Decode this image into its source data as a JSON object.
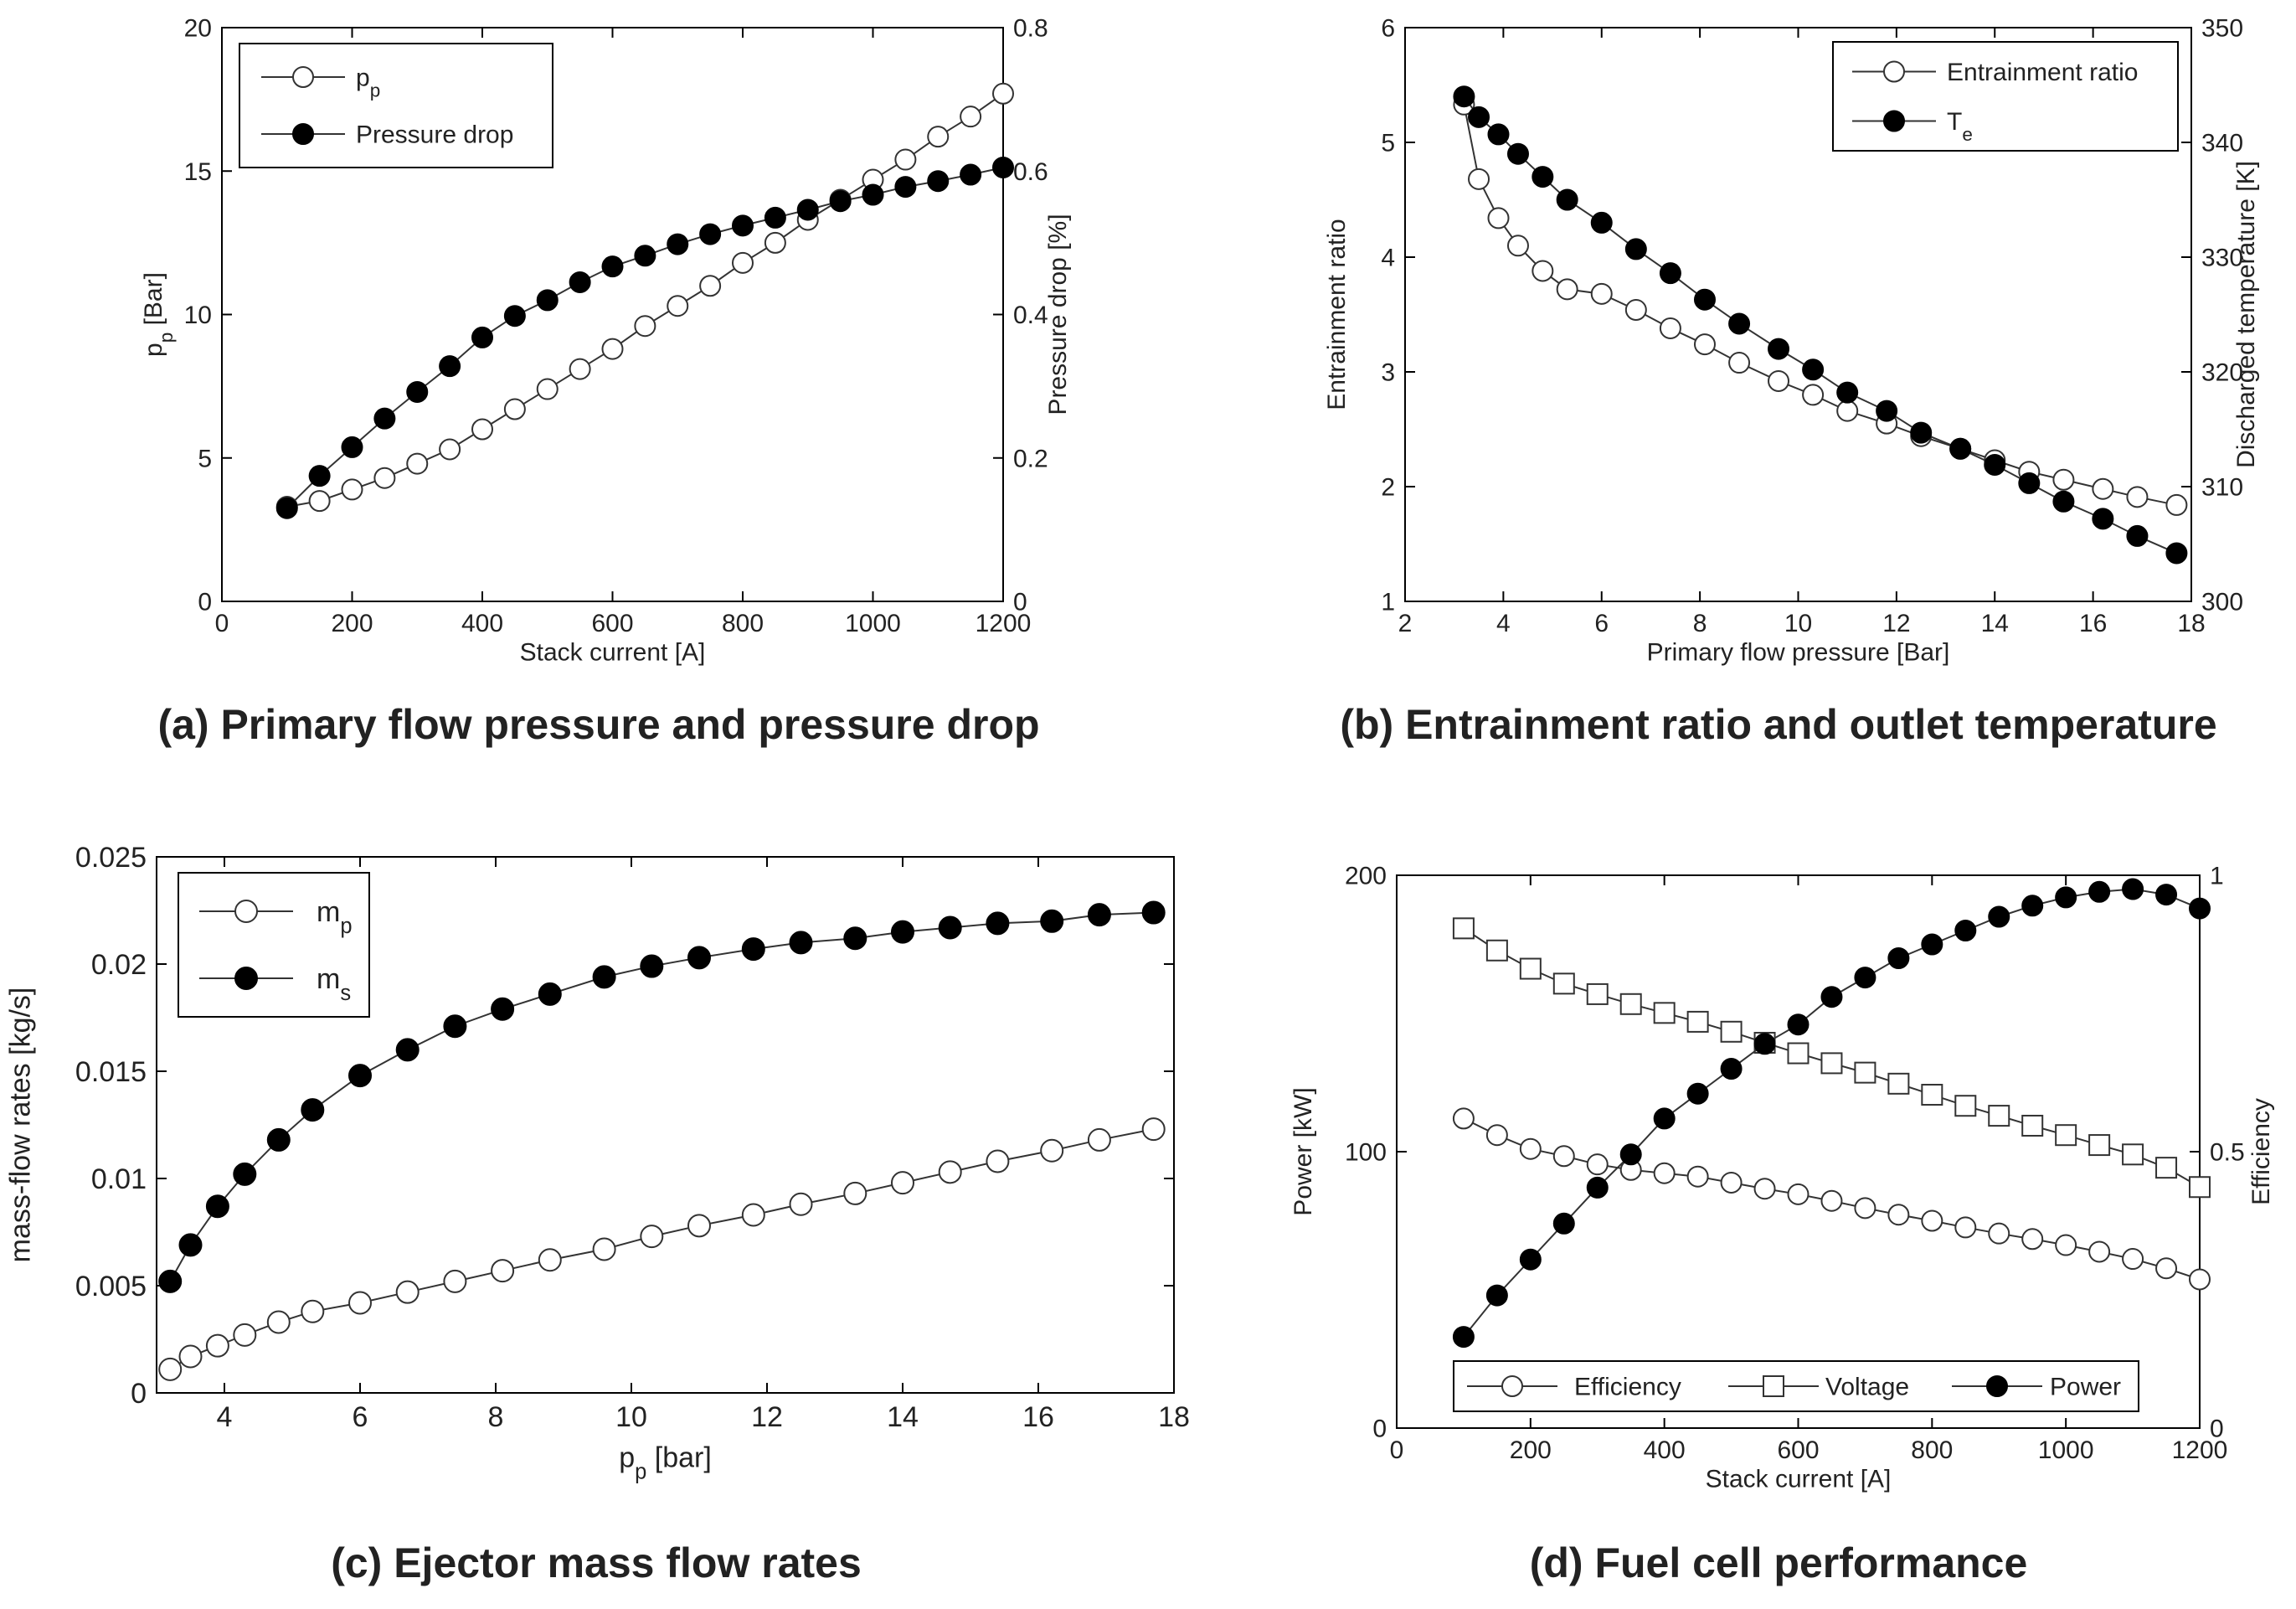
{
  "chart_data": [
    {
      "type": "line",
      "caption": "(a) Primary flow pressure and pressure drop",
      "xlabel": "Stack current [A]",
      "ylabel_left": "p",
      "ylabel_left_sub": "p",
      "ylabel_left_unit": " [Bar]",
      "ylabel_right": "Pressure drop [%]",
      "xlim": [
        0,
        1200
      ],
      "ylim_left": [
        0,
        20
      ],
      "ylim_right": [
        0,
        0.8
      ],
      "x_ticks": [
        "0",
        "200",
        "400",
        "600",
        "800",
        "1000",
        "1200"
      ],
      "y_left_ticks": [
        "0",
        "5",
        "10",
        "15",
        "20"
      ],
      "y_right_ticks": [
        "0",
        "0.2",
        "0.4",
        "0.6",
        "0.8"
      ],
      "legend": [
        {
          "label": "p",
          "sub": "p",
          "marker": "open-circle"
        },
        {
          "label": "Pressure drop",
          "sub": "",
          "marker": "filled-circle"
        }
      ],
      "series": [
        {
          "name": "pp",
          "axis": "left",
          "marker": "open-circle",
          "x": [
            100,
            150,
            200,
            250,
            300,
            350,
            400,
            450,
            500,
            550,
            600,
            650,
            700,
            750,
            800,
            850,
            900,
            950,
            1000,
            1050,
            1100,
            1150,
            1200
          ],
          "values": [
            3.3,
            3.5,
            3.9,
            4.3,
            4.8,
            5.3,
            6.0,
            6.7,
            7.4,
            8.1,
            8.8,
            9.6,
            10.3,
            11.0,
            11.8,
            12.5,
            13.3,
            14.0,
            14.7,
            15.4,
            16.2,
            16.9,
            17.7
          ]
        },
        {
          "name": "Pressure drop",
          "axis": "right",
          "marker": "filled-circle",
          "x": [
            100,
            150,
            200,
            250,
            300,
            350,
            400,
            450,
            500,
            550,
            600,
            650,
            700,
            750,
            800,
            850,
            900,
            950,
            1000,
            1050,
            1100,
            1150,
            1200
          ],
          "values": [
            0.13,
            0.175,
            0.215,
            0.255,
            0.292,
            0.328,
            0.368,
            0.398,
            0.42,
            0.445,
            0.467,
            0.482,
            0.498,
            0.512,
            0.524,
            0.535,
            0.546,
            0.558,
            0.567,
            0.578,
            0.586,
            0.595,
            0.605
          ]
        }
      ]
    },
    {
      "type": "line",
      "caption": "(b) Entrainment ratio and outlet temperature",
      "xlabel": "Primary flow pressure [Bar]",
      "ylabel_left": "Entrainment ratio",
      "ylabel_right": "Discharged temperature [K]",
      "xlim": [
        2,
        18
      ],
      "ylim_left": [
        1,
        6
      ],
      "ylim_right": [
        300,
        350
      ],
      "x_ticks": [
        "2",
        "4",
        "6",
        "8",
        "10",
        "12",
        "14",
        "16",
        "18"
      ],
      "y_left_ticks": [
        "1",
        "2",
        "3",
        "4",
        "5",
        "6"
      ],
      "y_right_ticks": [
        "300",
        "310",
        "320",
        "330",
        "340",
        "350"
      ],
      "legend": [
        {
          "label": "Entrainment ratio",
          "sub": "",
          "marker": "open-circle"
        },
        {
          "label": "T",
          "sub": "e",
          "marker": "filled-circle"
        }
      ],
      "series": [
        {
          "name": "Entrainment ratio",
          "axis": "left",
          "marker": "open-circle",
          "x": [
            3.2,
            3.5,
            3.9,
            4.3,
            4.8,
            5.3,
            6.0,
            6.7,
            7.4,
            8.1,
            8.8,
            9.6,
            10.3,
            11.0,
            11.8,
            12.5,
            13.3,
            14.0,
            14.7,
            15.4,
            16.2,
            16.9,
            17.7
          ],
          "values": [
            5.33,
            4.68,
            4.34,
            4.1,
            3.88,
            3.72,
            3.68,
            3.54,
            3.38,
            3.24,
            3.08,
            2.92,
            2.8,
            2.66,
            2.55,
            2.44,
            2.33,
            2.23,
            2.13,
            2.06,
            1.98,
            1.91,
            1.84
          ]
        },
        {
          "name": "Te",
          "axis": "right",
          "marker": "filled-circle",
          "x": [
            3.2,
            3.5,
            3.9,
            4.3,
            4.8,
            5.3,
            6.0,
            6.7,
            7.4,
            8.1,
            8.8,
            9.6,
            10.3,
            11.0,
            11.8,
            12.5,
            13.3,
            14.0,
            14.7,
            15.4,
            16.2,
            16.9,
            17.7
          ],
          "values": [
            344,
            342.2,
            340.7,
            339,
            337,
            335,
            333,
            330.7,
            328.6,
            326.3,
            324.2,
            322,
            320.2,
            318.2,
            316.6,
            314.7,
            313.3,
            311.9,
            310.3,
            308.7,
            307.2,
            305.7,
            304.2
          ]
        }
      ]
    },
    {
      "type": "line",
      "caption": "(c) Ejector mass flow rates",
      "xlabel": "p",
      "xlabel_sub": "p",
      "xlabel_unit": " [bar]",
      "ylabel_left": "mass-flow rates [kg/s]",
      "xlim": [
        3,
        18
      ],
      "ylim_left": [
        0,
        0.025
      ],
      "x_ticks": [
        "4",
        "6",
        "8",
        "10",
        "12",
        "14",
        "16",
        "18"
      ],
      "y_left_ticks": [
        "0",
        "0.005",
        "0.01",
        "0.015",
        "0.02",
        "0.025"
      ],
      "legend": [
        {
          "label": "m",
          "sub": "p",
          "marker": "open-circle"
        },
        {
          "label": "m",
          "sub": "s",
          "marker": "filled-circle"
        }
      ],
      "series": [
        {
          "name": "mp",
          "axis": "left",
          "marker": "open-circle",
          "x": [
            3.2,
            3.5,
            3.9,
            4.3,
            4.8,
            5.3,
            6.0,
            6.7,
            7.4,
            8.1,
            8.8,
            9.6,
            10.3,
            11.0,
            11.8,
            12.5,
            13.3,
            14.0,
            14.7,
            15.4,
            16.2,
            16.9,
            17.7
          ],
          "values": [
            0.0011,
            0.0017,
            0.0022,
            0.0027,
            0.0033,
            0.0038,
            0.0042,
            0.0047,
            0.0052,
            0.0057,
            0.0062,
            0.0067,
            0.0073,
            0.0078,
            0.0083,
            0.0088,
            0.0093,
            0.0098,
            0.0103,
            0.0108,
            0.0113,
            0.0118,
            0.0123
          ]
        },
        {
          "name": "ms",
          "axis": "left",
          "marker": "filled-circle",
          "x": [
            3.2,
            3.5,
            3.9,
            4.3,
            4.8,
            5.3,
            6.0,
            6.7,
            7.4,
            8.1,
            8.8,
            9.6,
            10.3,
            11.0,
            11.8,
            12.5,
            13.3,
            14.0,
            14.7,
            15.4,
            16.2,
            16.9,
            17.7
          ],
          "values": [
            0.0052,
            0.0069,
            0.0087,
            0.0102,
            0.0118,
            0.0132,
            0.0148,
            0.016,
            0.0171,
            0.0179,
            0.0186,
            0.0194,
            0.0199,
            0.0203,
            0.0207,
            0.021,
            0.0212,
            0.0215,
            0.0217,
            0.0219,
            0.022,
            0.0223,
            0.0224
          ]
        }
      ]
    },
    {
      "type": "line",
      "caption": "(d) Fuel cell performance",
      "xlabel": "Stack current [A]",
      "ylabel_left": "Power [kW]",
      "ylabel_right": "Efficiency",
      "xlim": [
        0,
        1200
      ],
      "ylim_left": [
        0,
        200
      ],
      "ylim_right": [
        0,
        1
      ],
      "x_ticks": [
        "0",
        "200",
        "400",
        "600",
        "800",
        "1000",
        "1200"
      ],
      "y_left_ticks": [
        "0",
        "100",
        "200"
      ],
      "y_right_ticks": [
        "0",
        "0.5",
        "1"
      ],
      "legend": [
        {
          "label": "Efficiency",
          "sub": "",
          "marker": "open-circle"
        },
        {
          "label": "Voltage",
          "sub": "",
          "marker": "open-square"
        },
        {
          "label": "Power",
          "sub": "",
          "marker": "filled-circle"
        }
      ],
      "series": [
        {
          "name": "Efficiency",
          "axis": "right",
          "marker": "open-circle",
          "x": [
            100,
            150,
            200,
            250,
            300,
            350,
            400,
            450,
            500,
            550,
            600,
            650,
            700,
            750,
            800,
            850,
            900,
            950,
            1000,
            1050,
            1100,
            1150,
            1200
          ],
          "values": [
            0.56,
            0.53,
            0.505,
            0.492,
            0.477,
            0.467,
            0.461,
            0.455,
            0.444,
            0.433,
            0.423,
            0.411,
            0.398,
            0.386,
            0.375,
            0.363,
            0.352,
            0.342,
            0.331,
            0.319,
            0.306,
            0.289,
            0.269
          ]
        },
        {
          "name": "Voltage",
          "axis": "right",
          "marker": "open-square",
          "x": [
            100,
            150,
            200,
            250,
            300,
            350,
            400,
            450,
            500,
            550,
            600,
            650,
            700,
            750,
            800,
            850,
            900,
            950,
            1000,
            1050,
            1100,
            1150,
            1200
          ],
          "values": [
            0.904,
            0.864,
            0.831,
            0.804,
            0.785,
            0.767,
            0.751,
            0.735,
            0.717,
            0.697,
            0.678,
            0.66,
            0.643,
            0.623,
            0.603,
            0.583,
            0.565,
            0.547,
            0.53,
            0.512,
            0.495,
            0.471,
            0.436
          ]
        },
        {
          "name": "Power",
          "axis": "left",
          "marker": "filled-circle",
          "x": [
            100,
            150,
            200,
            250,
            300,
            350,
            400,
            450,
            500,
            550,
            600,
            650,
            700,
            750,
            800,
            850,
            900,
            950,
            1000,
            1050,
            1100,
            1150,
            1200
          ],
          "values": [
            33,
            48,
            61,
            74,
            87,
            99,
            112,
            121,
            130,
            139,
            146,
            156,
            163,
            170,
            175,
            180,
            185,
            189,
            192,
            194,
            195,
            193,
            188
          ]
        }
      ]
    }
  ]
}
